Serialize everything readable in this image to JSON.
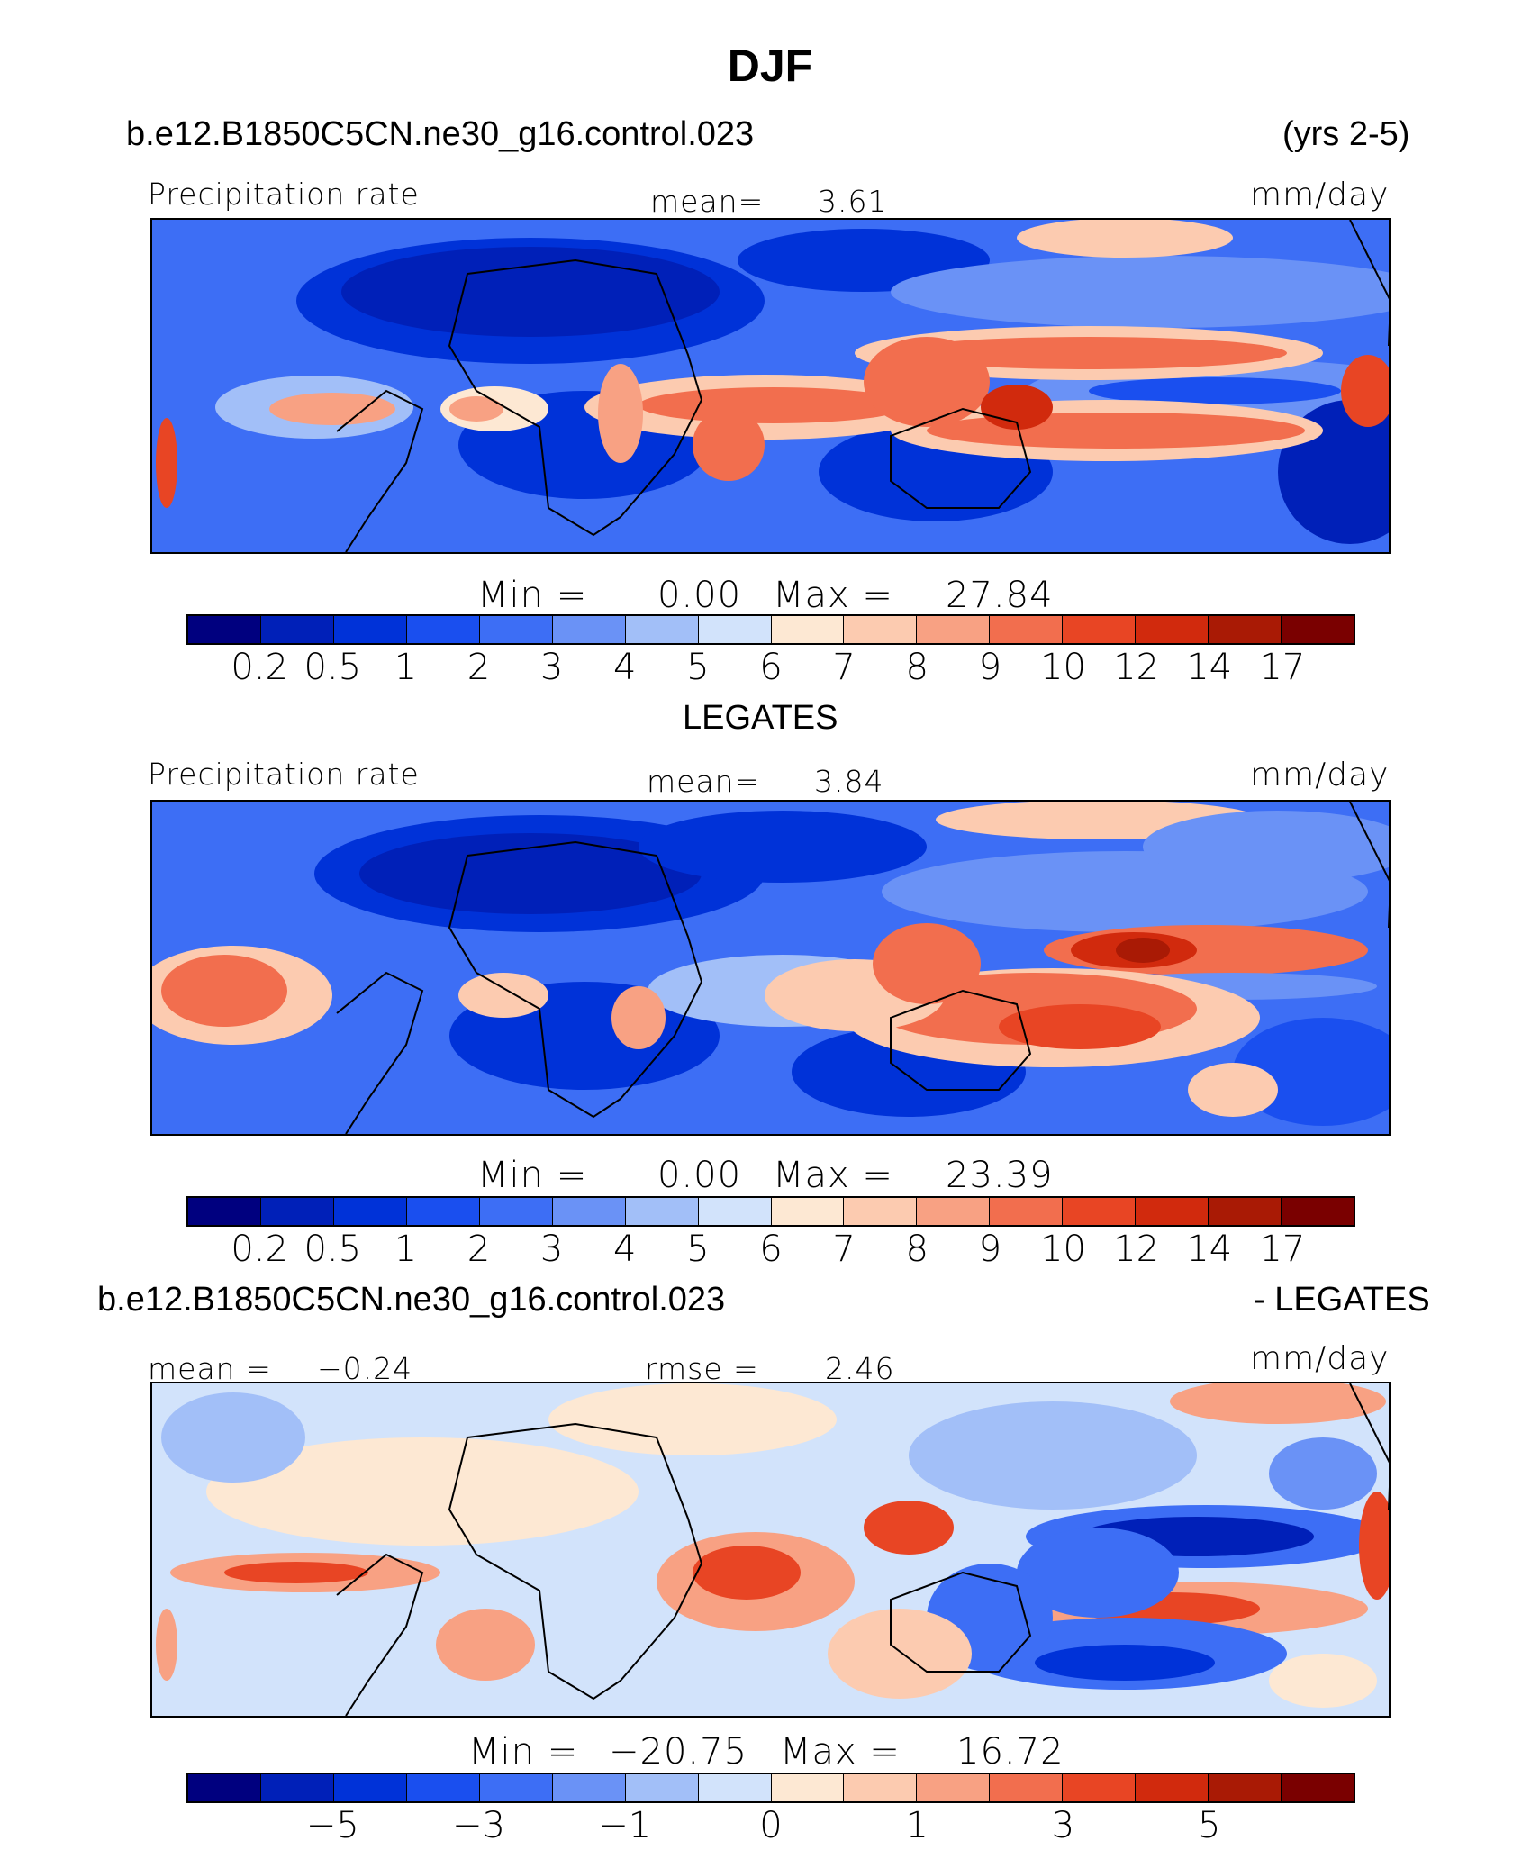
{
  "figure": {
    "title": "DJF",
    "case_name": "b.e12.B1850C5CN.ne30_g16.control.023",
    "years": "(yrs 2-5)",
    "obs_name": "LEGATES",
    "diff_title_left": "b.e12.B1850C5CN.ne30_g16.control.023",
    "diff_title_right": "- LEGATES"
  },
  "panels": [
    {
      "id": "model",
      "field_label": "Precipitation rate",
      "mean_label": "mean=",
      "mean_value": "3.61",
      "units": "mm/day",
      "min_label": "Min =",
      "min_value": "0.00",
      "max_label": "Max =",
      "max_value": "27.84"
    },
    {
      "id": "obs",
      "field_label": "Precipitation rate",
      "mean_label": "mean=",
      "mean_value": "3.84",
      "units": "mm/day",
      "min_label": "Min =",
      "min_value": "0.00",
      "max_label": "Max =",
      "max_value": "23.39"
    },
    {
      "id": "diff",
      "mean_label": "mean =",
      "mean_value": "−0.24",
      "rmse_label": "rmse =",
      "rmse_value": "2.46",
      "units": "mm/day",
      "min_label": "Min =",
      "min_value": "−20.75",
      "max_label": "Max =",
      "max_value": "16.72"
    }
  ],
  "colorbar_precip": {
    "colors": [
      "#00007f",
      "#0020b8",
      "#0032d8",
      "#1a4fef",
      "#3d6ef5",
      "#6a92f6",
      "#a2bff8",
      "#d2e3fb",
      "#fde8d3",
      "#fccbb0",
      "#f8a183",
      "#f26e4e",
      "#e84524",
      "#d12a0d",
      "#a91a05",
      "#7a0000"
    ],
    "tick_labels": [
      "0.2",
      "0.5",
      "1",
      "2",
      "3",
      "4",
      "5",
      "6",
      "7",
      "8",
      "9",
      "10",
      "12",
      "14",
      "17"
    ]
  },
  "colorbar_diff": {
    "colors": [
      "#00007f",
      "#0020b8",
      "#0032d8",
      "#1a4fef",
      "#3d6ef5",
      "#6a92f6",
      "#a2bff8",
      "#d2e3fb",
      "#fde8d3",
      "#fccbb0",
      "#f8a183",
      "#f26e4e",
      "#e84524",
      "#d12a0d",
      "#a91a05",
      "#7a0000"
    ],
    "tick_labels": [
      "−5",
      "−3",
      "−1",
      "0",
      "1",
      "3",
      "5"
    ]
  }
}
